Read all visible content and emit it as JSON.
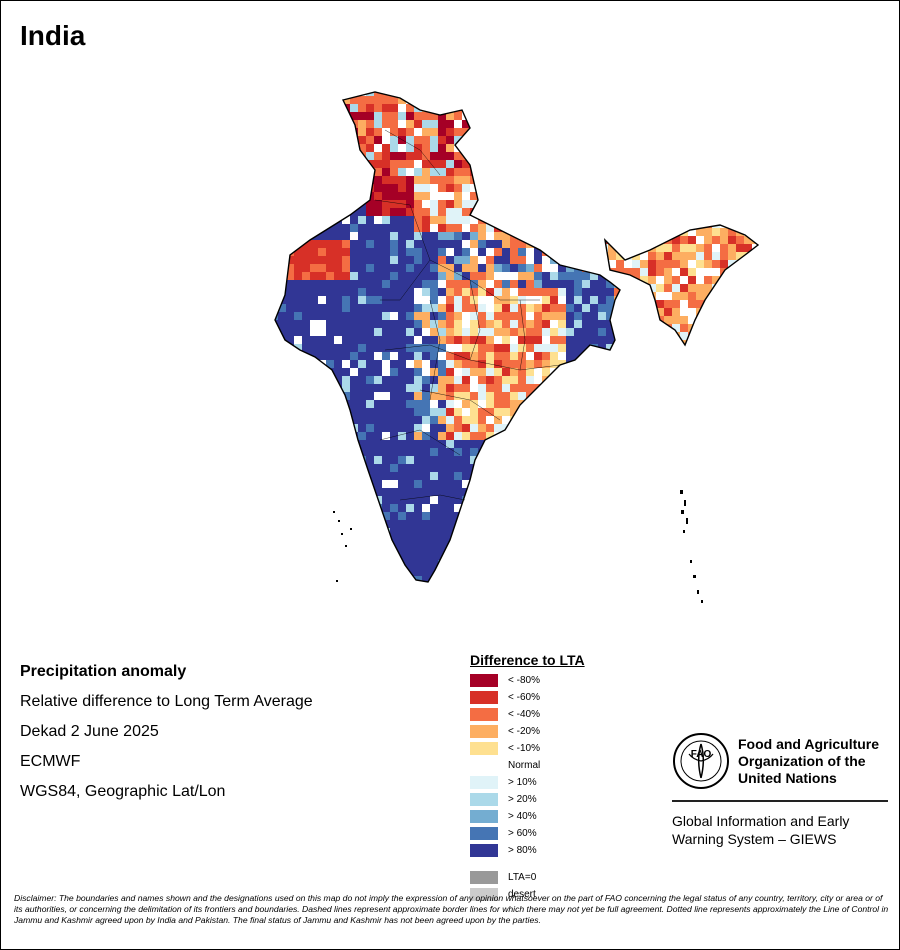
{
  "title": "India",
  "meta": {
    "heading": "Precipitation anomaly",
    "subtitle": "Relative difference to Long Term Average",
    "period": "Dekad 2 June 2025",
    "source": "ECMWF",
    "projection": "WGS84, Geographic Lat/Lon"
  },
  "legend": {
    "title": "Difference to LTA",
    "items": [
      {
        "label": "< -80%",
        "color": "#a50026"
      },
      {
        "label": "< -60%",
        "color": "#d73027"
      },
      {
        "label": "< -40%",
        "color": "#f46d43"
      },
      {
        "label": "< -20%",
        "color": "#fdae61"
      },
      {
        "label": "< -10%",
        "color": "#fee090"
      },
      {
        "label": "Normal",
        "color": "#ffffff"
      },
      {
        "label": "> 10%",
        "color": "#e0f3f8"
      },
      {
        "label": "> 20%",
        "color": "#abd9e9"
      },
      {
        "label": "> 40%",
        "color": "#74add1"
      },
      {
        "label": "> 60%",
        "color": "#4575b4"
      },
      {
        "label": "> 80%",
        "color": "#313695"
      }
    ],
    "extra": [
      {
        "label": "LTA=0",
        "color": "#999999"
      },
      {
        "label": "desert",
        "color": "#cccccc"
      }
    ]
  },
  "org": {
    "logo_text": "FAO",
    "name_line1": "Food and Agriculture",
    "name_line2": "Organization of the",
    "name_line3": "United Nations",
    "giews_line1": "Global Information and Early",
    "giews_line2": "Warning System – GIEWS"
  },
  "disclaimer": "Disclaimer: The boundaries and names shown and the designations used on this map do not imply the expression of any opinion whatsoever on the part of FAO concerning the legal status of any country, territory, city or area or of its authorities, or concerning the delimitation of its frontiers and boundaries. Dashed lines represent approximate border lines for which there may not yet be full agreement. Dotted line represents approximately the Line of Control in Jammu and Kashmir agreed upon by India and Pakistan. The final status of Jammu and Kashmir has not been agreed upon by the parties."
}
